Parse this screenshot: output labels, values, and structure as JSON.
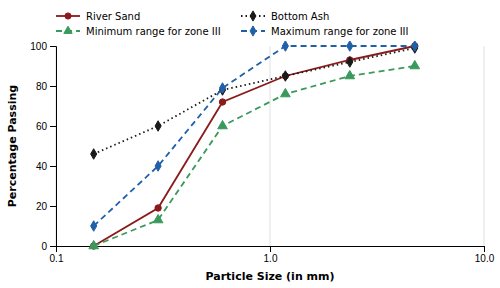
{
  "chart_data": {
    "type": "line",
    "xlabel": "Particle Size (in mm)",
    "ylabel": "Percentage Passing",
    "x": [
      0.15,
      0.3,
      0.6,
      1.18,
      2.36,
      4.75
    ],
    "series": [
      {
        "name": "River Sand",
        "color": "#8B1A1A",
        "marker": "circle",
        "line_style": "solid",
        "values": [
          0,
          19,
          72,
          85,
          93,
          100
        ]
      },
      {
        "name": "Bottom Ash",
        "color": "#1a1a1a",
        "marker": "diamond",
        "line_style": "dotted",
        "values": [
          46,
          60,
          78,
          85,
          92,
          99
        ]
      },
      {
        "name": "Minimum range for zone III",
        "color": "#3a9a5c",
        "marker": "triangle",
        "line_style": "dashed",
        "values": [
          0,
          13,
          60,
          76,
          85,
          90
        ]
      },
      {
        "name": "Maximum range for zone III",
        "color": "#2060a8",
        "marker": "diamond",
        "line_style": "dashed",
        "values": [
          10,
          40,
          79,
          100,
          100,
          100
        ]
      }
    ],
    "log": "x",
    "xlim": [
      0.1,
      10.0
    ],
    "ylim": [
      0,
      100
    ],
    "xticks": [
      0.1,
      {
        "value": 1.0,
        "label": "1.0"
      },
      {
        "value": 10.0,
        "label": "10.0"
      }
    ],
    "yticks": [
      0,
      20,
      40,
      60,
      80,
      100
    ],
    "grid": "x",
    "legend": "top"
  }
}
